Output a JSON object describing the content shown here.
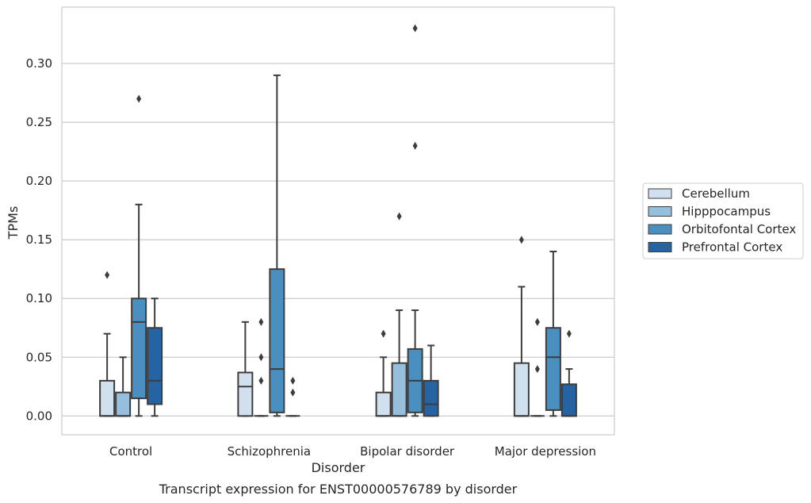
{
  "chart_data": {
    "type": "box",
    "caption": "Transcript expression for ENST00000576789 by disorder",
    "xlabel": "Disorder",
    "ylabel": "TPMs",
    "ylim": [
      -0.016,
      0.348
    ],
    "yticks": [
      0.0,
      0.05,
      0.1,
      0.15,
      0.2,
      0.25,
      0.3
    ],
    "ytick_labels": [
      "0.00",
      "0.05",
      "0.10",
      "0.15",
      "0.20",
      "0.25",
      "0.30"
    ],
    "grid": true,
    "legend_position": "right",
    "categories": [
      "Control",
      "Schizophrenia",
      "Bipolar disorder",
      "Major depression"
    ],
    "series": [
      {
        "name": "Cerebellum",
        "color": "#d0e0ef",
        "boxes": [
          {
            "whislo": 0.0,
            "q1": 0.0,
            "med": 0.0,
            "q3": 0.03,
            "whishi": 0.07,
            "fliers": [
              0.12
            ]
          },
          {
            "whislo": 0.0,
            "q1": 0.0,
            "med": 0.025,
            "q3": 0.037,
            "whishi": 0.08,
            "fliers": []
          },
          {
            "whislo": 0.0,
            "q1": 0.0,
            "med": 0.0,
            "q3": 0.02,
            "whishi": 0.05,
            "fliers": [
              0.07
            ]
          },
          {
            "whislo": 0.0,
            "q1": 0.0,
            "med": 0.0,
            "q3": 0.045,
            "whishi": 0.11,
            "fliers": [
              0.15
            ]
          }
        ]
      },
      {
        "name": "Hipppocampus",
        "color": "#96bfdb",
        "boxes": [
          {
            "whislo": 0.0,
            "q1": 0.0,
            "med": 0.0,
            "q3": 0.02,
            "whishi": 0.05,
            "fliers": []
          },
          {
            "whislo": 0.0,
            "q1": 0.0,
            "med": 0.0,
            "q3": 0.0,
            "whishi": 0.0,
            "fliers": [
              0.03,
              0.05,
              0.08
            ]
          },
          {
            "whislo": 0.0,
            "q1": 0.0,
            "med": 0.0,
            "q3": 0.045,
            "whishi": 0.09,
            "fliers": [
              0.17
            ]
          },
          {
            "whislo": 0.0,
            "q1": 0.0,
            "med": 0.0,
            "q3": 0.0,
            "whishi": 0.0,
            "fliers": [
              0.04,
              0.08
            ]
          }
        ]
      },
      {
        "name": "Orbitofontal Cortex",
        "color": "#4b8fc1",
        "boxes": [
          {
            "whislo": 0.0,
            "q1": 0.015,
            "med": 0.08,
            "q3": 0.1,
            "whishi": 0.18,
            "fliers": [
              0.27
            ]
          },
          {
            "whislo": 0.0,
            "q1": 0.003,
            "med": 0.04,
            "q3": 0.125,
            "whishi": 0.29,
            "fliers": []
          },
          {
            "whislo": 0.0,
            "q1": 0.003,
            "med": 0.03,
            "q3": 0.057,
            "whishi": 0.09,
            "fliers": [
              0.23,
              0.33
            ]
          },
          {
            "whislo": 0.0,
            "q1": 0.005,
            "med": 0.05,
            "q3": 0.075,
            "whishi": 0.14,
            "fliers": []
          }
        ]
      },
      {
        "name": "Prefrontal Cortex",
        "color": "#2563a3",
        "boxes": [
          {
            "whislo": 0.0,
            "q1": 0.01,
            "med": 0.03,
            "q3": 0.075,
            "whishi": 0.1,
            "fliers": []
          },
          {
            "whislo": 0.0,
            "q1": 0.0,
            "med": 0.0,
            "q3": 0.0,
            "whishi": 0.0,
            "fliers": [
              0.02,
              0.03
            ]
          },
          {
            "whislo": 0.0,
            "q1": 0.0,
            "med": 0.01,
            "q3": 0.03,
            "whishi": 0.06,
            "fliers": []
          },
          {
            "whislo": 0.0,
            "q1": 0.0,
            "med": 0.0,
            "q3": 0.027,
            "whishi": 0.04,
            "fliers": [
              0.07
            ]
          }
        ]
      }
    ]
  }
}
